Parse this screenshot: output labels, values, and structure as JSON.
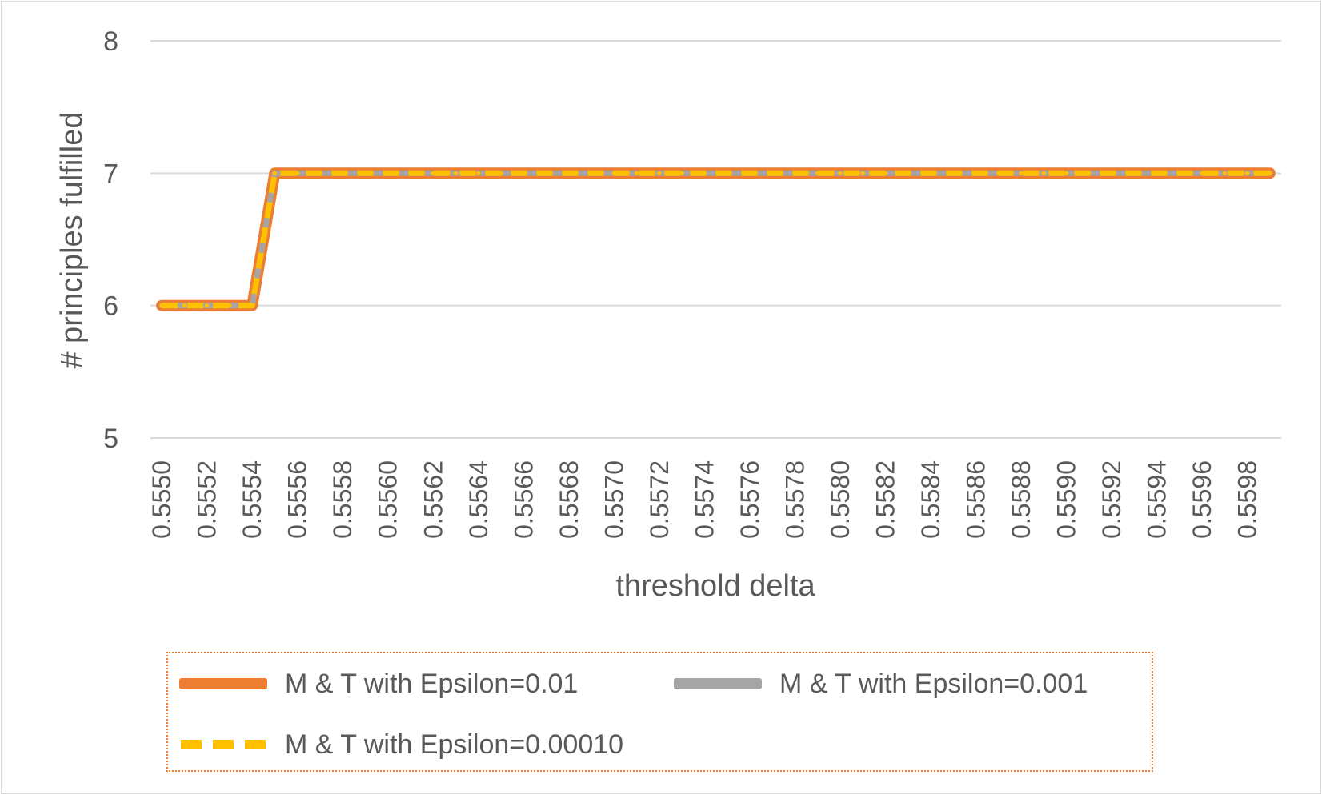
{
  "chart_data": {
    "type": "line",
    "xlabel": "threshold delta",
    "ylabel": "# principles fulfilled",
    "ylim": [
      5,
      8
    ],
    "y_ticks": [
      "5",
      "6",
      "7",
      "8"
    ],
    "x_tick_labels": [
      "0.5550",
      "0.5552",
      "0.5554",
      "0.5556",
      "0.5558",
      "0.5560",
      "0.5562",
      "0.5564",
      "0.5566",
      "0.5568",
      "0.5570",
      "0.5572",
      "0.5574",
      "0.5576",
      "0.5578",
      "0.5580",
      "0.5582",
      "0.5584",
      "0.5586",
      "0.5588",
      "0.5590",
      "0.5592",
      "0.5594",
      "0.5596",
      "0.5598"
    ],
    "x": [
      0.555,
      0.5551,
      0.5552,
      0.5553,
      0.5554,
      0.5555,
      0.5556,
      0.5557,
      0.5558,
      0.5559,
      0.556,
      0.5561,
      0.5562,
      0.5563,
      0.5564,
      0.5565,
      0.5566,
      0.5567,
      0.5568,
      0.5569,
      0.557,
      0.5571,
      0.5572,
      0.5573,
      0.5574,
      0.5575,
      0.5576,
      0.5577,
      0.5578,
      0.5579,
      0.558,
      0.5581,
      0.5582,
      0.5583,
      0.5584,
      0.5585,
      0.5586,
      0.5587,
      0.5588,
      0.5589,
      0.559,
      0.5591,
      0.5592,
      0.5593,
      0.5594,
      0.5595,
      0.5596,
      0.5597,
      0.5598,
      0.5599
    ],
    "grid": true,
    "legend_position": "bottom",
    "series": [
      {
        "name": "M & T with Epsilon=0.01",
        "color": "#ed7d31",
        "style": "solid",
        "values": [
          6,
          6,
          6,
          6,
          6,
          7,
          7,
          7,
          7,
          7,
          7,
          7,
          7,
          7,
          7,
          7,
          7,
          7,
          7,
          7,
          7,
          7,
          7,
          7,
          7,
          7,
          7,
          7,
          7,
          7,
          7,
          7,
          7,
          7,
          7,
          7,
          7,
          7,
          7,
          7,
          7,
          7,
          7,
          7,
          7,
          7,
          7,
          7,
          7,
          7
        ]
      },
      {
        "name": "M & T with Epsilon=0.001",
        "color": "#a5a5a5",
        "style": "solid",
        "values": [
          6,
          6,
          6,
          6,
          6,
          7,
          7,
          7,
          7,
          7,
          7,
          7,
          7,
          7,
          7,
          7,
          7,
          7,
          7,
          7,
          7,
          7,
          7,
          7,
          7,
          7,
          7,
          7,
          7,
          7,
          7,
          7,
          7,
          7,
          7,
          7,
          7,
          7,
          7,
          7,
          7,
          7,
          7,
          7,
          7,
          7,
          7,
          7,
          7,
          7
        ]
      },
      {
        "name": "M & T with Epsilon=0.00010",
        "color": "#ffc000",
        "style": "dashed",
        "values": [
          6,
          6,
          6,
          6,
          6,
          7,
          7,
          7,
          7,
          7,
          7,
          7,
          7,
          7,
          7,
          7,
          7,
          7,
          7,
          7,
          7,
          7,
          7,
          7,
          7,
          7,
          7,
          7,
          7,
          7,
          7,
          7,
          7,
          7,
          7,
          7,
          7,
          7,
          7,
          7,
          7,
          7,
          7,
          7,
          7,
          7,
          7,
          7,
          7,
          7
        ]
      }
    ]
  }
}
